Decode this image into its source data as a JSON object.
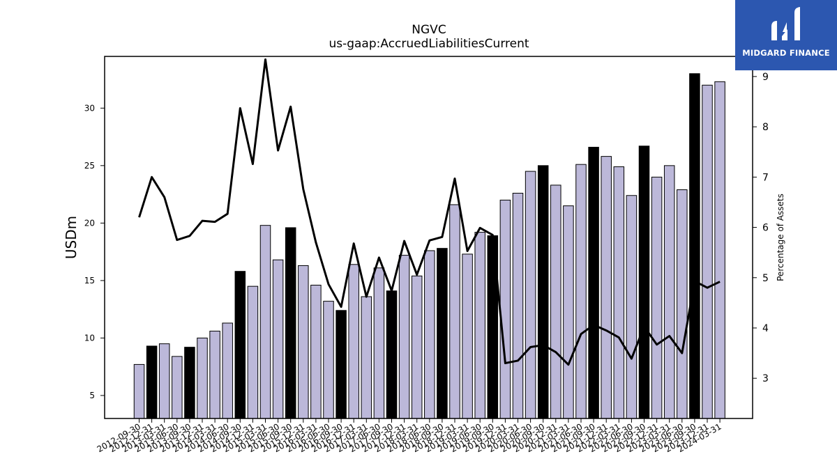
{
  "brand": {
    "text": "MIDGARD FINANCE",
    "bg": "#2c57b0"
  },
  "chart_data": {
    "type": "bar",
    "title": "NGVC",
    "subtitle": "us-gaap:AccruedLiabilitiesCurrent",
    "ylabel": "USDm",
    "y2label": "Percentage of Assets",
    "ylim": [
      3.0,
      34.5
    ],
    "y2lim": [
      2.2,
      9.4
    ],
    "yticks": [
      5,
      10,
      15,
      20,
      25,
      30
    ],
    "y2ticks": [
      3,
      4,
      5,
      6,
      7,
      8,
      9
    ],
    "grid": false,
    "bar_color": "#bcb8d9",
    "highlight_color": "#000000",
    "line_color": "#000000",
    "categories": [
      "2012-09-30",
      "2012-12-31",
      "2013-03-31",
      "2013-06-30",
      "2013-09-30",
      "2013-12-31",
      "2014-03-31",
      "2014-06-30",
      "2014-09-30",
      "2014-12-31",
      "2015-03-31",
      "2015-06-30",
      "2015-09-30",
      "2015-12-31",
      "2016-03-31",
      "2016-06-30",
      "2016-09-30",
      "2016-12-31",
      "2017-03-31",
      "2017-06-30",
      "2017-09-30",
      "2017-12-31",
      "2018-03-31",
      "2018-06-30",
      "2018-09-30",
      "2018-12-31",
      "2019-03-31",
      "2019-06-30",
      "2019-09-30",
      "2019-12-31",
      "2020-03-31",
      "2020-06-30",
      "2020-09-30",
      "2020-12-31",
      "2021-03-31",
      "2021-06-30",
      "2021-09-30",
      "2021-12-31",
      "2022-03-31",
      "2022-06-30",
      "2022-09-30",
      "2022-12-31",
      "2023-03-31",
      "2023-06-30",
      "2023-09-30",
      "2023-12-31",
      "2024-03-31"
    ],
    "highlight": [
      false,
      true,
      false,
      false,
      true,
      false,
      false,
      false,
      true,
      false,
      false,
      false,
      true,
      false,
      false,
      false,
      true,
      false,
      false,
      false,
      true,
      false,
      false,
      false,
      true,
      false,
      false,
      false,
      true,
      false,
      false,
      false,
      true,
      false,
      false,
      false,
      true,
      false,
      false,
      false,
      true,
      false,
      false,
      false,
      true,
      false,
      false
    ],
    "series": [
      {
        "type": "bar",
        "values": [
          7.7,
          9.3,
          9.5,
          8.4,
          9.2,
          10.0,
          10.6,
          11.3,
          15.8,
          14.5,
          19.8,
          16.8,
          19.6,
          16.3,
          14.6,
          13.2,
          12.4,
          16.4,
          13.6,
          16.1,
          14.1,
          17.2,
          15.4,
          17.6,
          17.8,
          21.6,
          17.3,
          19.2,
          18.9,
          22.0,
          22.6,
          24.5,
          25.0,
          23.3,
          21.5,
          25.1,
          26.6,
          25.8,
          24.9,
          22.4,
          26.7,
          24.0,
          25.0,
          22.9,
          33.0,
          32.0,
          32.3
        ]
      },
      {
        "type": "line",
        "axis": "right",
        "values": [
          6.2,
          7.0,
          6.6,
          5.75,
          5.83,
          6.13,
          6.11,
          6.27,
          8.37,
          7.26,
          9.34,
          7.53,
          8.4,
          6.76,
          5.7,
          4.87,
          4.42,
          5.68,
          4.62,
          5.4,
          4.74,
          5.73,
          5.06,
          5.74,
          5.81,
          6.97,
          5.53,
          5.99,
          5.85,
          3.3,
          3.35,
          3.62,
          3.66,
          3.52,
          3.27,
          3.88,
          4.06,
          3.95,
          3.81,
          3.39,
          4.03,
          3.67,
          3.84,
          3.5,
          4.93,
          4.8,
          4.92
        ]
      }
    ]
  }
}
